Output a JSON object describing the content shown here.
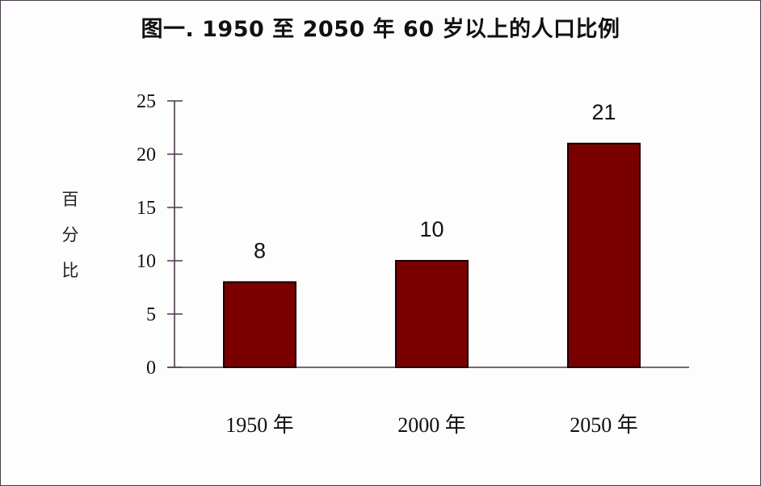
{
  "title": "图一.  1950 至 2050 年 60 岁以上的人口比例",
  "y_axis": {
    "label_chars": [
      "百",
      "分",
      "比"
    ],
    "ticks": [
      "0",
      "5",
      "10",
      "15",
      "20",
      "25"
    ]
  },
  "bars": [
    {
      "category": "1950 年",
      "value": 8,
      "label": "8"
    },
    {
      "category": "2000 年",
      "value": 10,
      "label": "10"
    },
    {
      "category": "2050 年",
      "value": 21,
      "label": "21"
    }
  ],
  "colors": {
    "bar_fill": "#7a0000",
    "bar_stroke": "#1a0000",
    "axis": "#4a3a4a",
    "text": "#111111"
  },
  "chart_data": {
    "type": "bar",
    "title": "图一.  1950 至 2050 年 60 岁以上的人口比例",
    "categories": [
      "1950 年",
      "2000 年",
      "2050 年"
    ],
    "values": [
      8,
      10,
      21
    ],
    "data_labels": [
      "8",
      "10",
      "21"
    ],
    "xlabel": "",
    "ylabel": "百分比",
    "ylim": [
      0,
      25
    ],
    "yticks": [
      0,
      5,
      10,
      15,
      20,
      25
    ],
    "grid": false,
    "legend": null
  }
}
